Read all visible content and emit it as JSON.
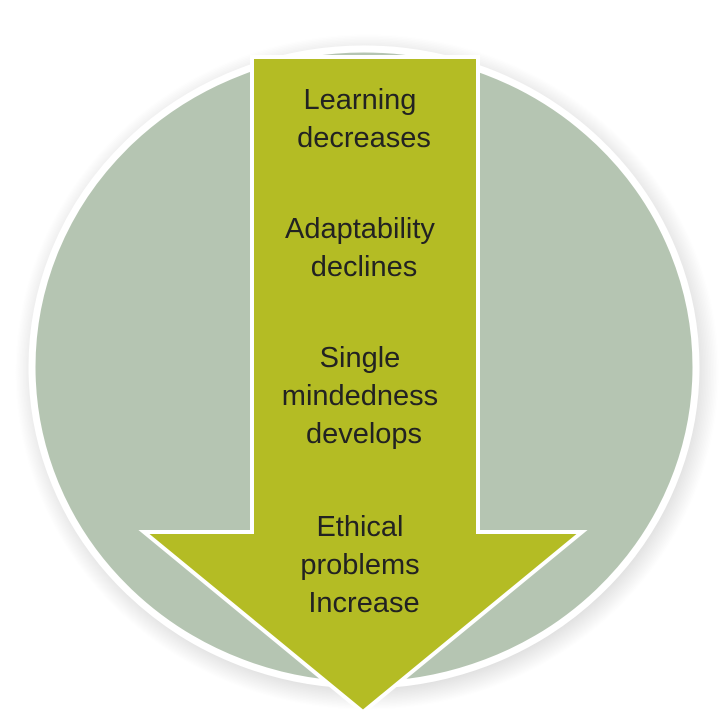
{
  "colors": {
    "background": "#ffffff",
    "circle_fill": "#b5c5b2",
    "circle_stroke": "#ffffff",
    "arrow_fill": "#b4bc24",
    "text": "#222222"
  },
  "steps": [
    {
      "lines": [
        "Learning",
        "decreases"
      ]
    },
    {
      "lines": [
        "Adaptability",
        "declines"
      ]
    },
    {
      "lines": [
        "Single",
        "mindedness",
        "develops"
      ]
    },
    {
      "lines": [
        "Ethical",
        "problems",
        "Increase"
      ]
    }
  ]
}
